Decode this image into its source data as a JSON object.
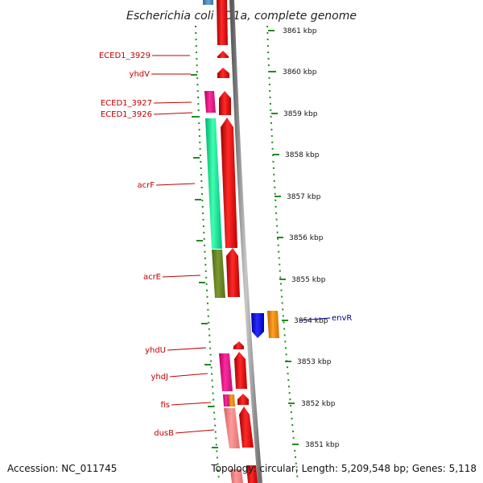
{
  "title": "Escherichia coli ED1a, complete genome",
  "footer": {
    "accession": "Accession: NC_011745",
    "topology": "Topology: circular; Length: 5,209,548 bp; Genes: 5,118"
  },
  "ticks": [
    "3861 kbp",
    "3860 kbp",
    "3859 kbp",
    "3858 kbp",
    "3857 kbp",
    "3856 kbp",
    "3855 kbp",
    "3854 kbp",
    "3853 kbp",
    "3852 kbp",
    "3851 kbp"
  ],
  "genes": [
    {
      "name": "ECED1_3929",
      "color": "#ff0000"
    },
    {
      "name": "yhdV",
      "color": "#ff0000"
    },
    {
      "name": "ECED1_3927",
      "color": "#ff1493"
    },
    {
      "name": "ECED1_3926",
      "color": "#ff0000"
    },
    {
      "name": "acrF",
      "color": "#00fa9a"
    },
    {
      "name": "acrE",
      "color": "#6b8e23"
    },
    {
      "name": "yhdU",
      "color": "#ff0000"
    },
    {
      "name": "yhdJ",
      "color": "#ff1493"
    },
    {
      "name": "fis",
      "color": "#ff8c00"
    },
    {
      "name": "dusB",
      "color": "#f08080"
    },
    {
      "name": "envR",
      "color": "#0000ff"
    }
  ],
  "colors": {
    "backbone": "#8c8c8c",
    "tick_dots": "#228b22",
    "label_red": "#c00000",
    "label_blue": "#00008b",
    "top_blue_gene": "#4682b4",
    "top_orange_gene": "#ff8c00"
  }
}
